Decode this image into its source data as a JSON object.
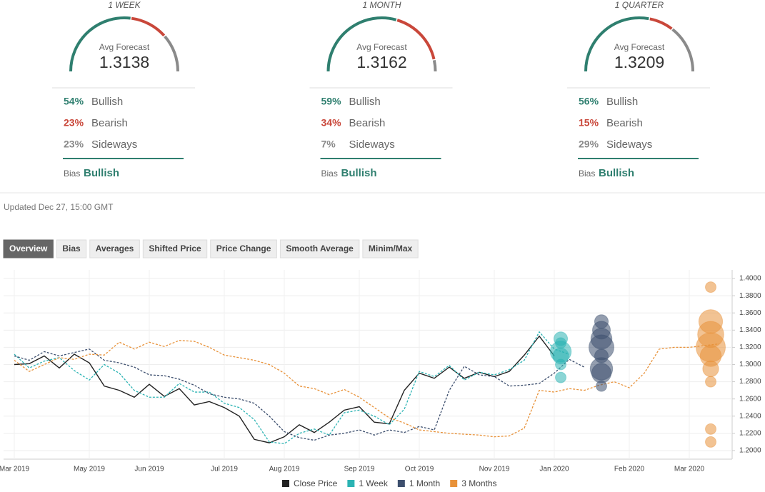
{
  "forecasts": [
    {
      "period": "1 WEEK",
      "avg_label": "Avg Forecast",
      "avg": "1.3138",
      "rows": [
        {
          "value": 54,
          "label": "54%",
          "name": "Bullish"
        },
        {
          "value": 23,
          "label": "23%",
          "name": "Bearish"
        },
        {
          "value": 23,
          "label": "23%",
          "name": "Sideways"
        }
      ],
      "bias_label": "Bias",
      "bias": "Bullish"
    },
    {
      "period": "1 MONTH",
      "avg_label": "Avg Forecast",
      "avg": "1.3162",
      "rows": [
        {
          "value": 59,
          "label": "59%",
          "name": "Bullish"
        },
        {
          "value": 34,
          "label": "34%",
          "name": "Bearish"
        },
        {
          "value": 7,
          "label": "7%",
          "name": "Sideways"
        }
      ],
      "bias_label": "Bias",
      "bias": "Bullish"
    },
    {
      "period": "1 QUARTER",
      "avg_label": "Avg Forecast",
      "avg": "1.3209",
      "rows": [
        {
          "value": 56,
          "label": "56%",
          "name": "Bullish"
        },
        {
          "value": 15,
          "label": "15%",
          "name": "Bearish"
        },
        {
          "value": 29,
          "label": "29%",
          "name": "Sideways"
        }
      ],
      "bias_label": "Bias",
      "bias": "Bullish"
    }
  ],
  "updated": "Updated Dec 27, 15:00 GMT",
  "tabs": [
    {
      "label": "Overview",
      "active": true
    },
    {
      "label": "Bias",
      "active": false
    },
    {
      "label": "Averages",
      "active": false
    },
    {
      "label": "Shifted Price",
      "active": false
    },
    {
      "label": "Price Change",
      "active": false
    },
    {
      "label": "Smooth Average",
      "active": false
    },
    {
      "label": "Minim/Max",
      "active": false
    }
  ],
  "chart_data": {
    "type": "line",
    "categories": [
      "Mar 2019",
      null,
      null,
      null,
      null,
      "May 2019",
      null,
      null,
      null,
      "Jun 2019",
      null,
      null,
      null,
      null,
      "Jul 2019",
      null,
      null,
      null,
      "Aug 2019",
      null,
      null,
      null,
      null,
      "Sep 2019",
      null,
      null,
      null,
      "Oct 2019",
      null,
      null,
      null,
      null,
      "Nov 2019",
      null,
      null,
      null,
      "Jan 2020",
      null,
      null,
      null,
      null,
      "Feb 2020",
      null,
      null,
      null,
      "Mar 2020",
      null,
      null
    ],
    "ylim": [
      1.19,
      1.41
    ],
    "yticks": [
      {
        "value": 1.2,
        "label": "1.2000"
      },
      {
        "value": 1.22,
        "label": "1.2200"
      },
      {
        "value": 1.24,
        "label": "1.2400"
      },
      {
        "value": 1.26,
        "label": "1.2600"
      },
      {
        "value": 1.28,
        "label": "1.2800"
      },
      {
        "value": 1.3,
        "label": "1.3000"
      },
      {
        "value": 1.32,
        "label": "1.3200"
      },
      {
        "value": 1.34,
        "label": "1.3400"
      },
      {
        "value": 1.36,
        "label": "1.3600"
      },
      {
        "value": 1.38,
        "label": "1.3800"
      },
      {
        "value": 1.4,
        "label": "1.4000"
      }
    ],
    "grid": true,
    "series": [
      {
        "name": "Close Price",
        "color": "#222222",
        "dashed": false,
        "values": [
          1.3,
          1.301,
          1.31,
          1.296,
          1.312,
          1.302,
          1.275,
          1.27,
          1.262,
          1.277,
          1.263,
          1.272,
          1.253,
          1.257,
          1.25,
          1.24,
          1.213,
          1.209,
          1.216,
          1.23,
          1.221,
          1.233,
          1.247,
          1.251,
          1.233,
          1.231,
          1.27,
          1.29,
          1.284,
          1.297,
          1.284,
          1.291,
          1.286,
          1.292,
          1.311,
          1.333,
          1.31,
          null,
          null,
          null,
          null,
          null,
          null,
          null,
          null,
          null,
          null,
          null
        ]
      },
      {
        "name": "1 Week",
        "color": "#2bb3b3",
        "dashed": true,
        "values": [
          1.312,
          1.296,
          1.304,
          1.308,
          1.293,
          1.282,
          1.3,
          1.29,
          1.27,
          1.262,
          1.262,
          1.278,
          1.268,
          1.268,
          1.255,
          1.25,
          1.236,
          1.21,
          1.208,
          1.22,
          1.225,
          1.218,
          1.244,
          1.247,
          1.24,
          1.23,
          1.248,
          1.292,
          1.286,
          1.299,
          1.282,
          1.291,
          1.288,
          1.294,
          1.305,
          1.338,
          1.318,
          1.312,
          null,
          null,
          null,
          null,
          null,
          null,
          null,
          null,
          null,
          null
        ],
        "bubbles": {
          "values": [
            1.33,
            1.325,
            1.315,
            1.31,
            1.3,
            1.285
          ],
          "sizes": [
            2,
            1,
            6,
            3,
            1,
            1
          ]
        }
      },
      {
        "name": "1 Month",
        "color": "#3d4f6e",
        "dashed": true,
        "values": [
          1.31,
          1.305,
          1.315,
          1.31,
          1.314,
          1.318,
          1.305,
          1.302,
          1.297,
          1.288,
          1.287,
          1.283,
          1.276,
          1.266,
          1.262,
          1.26,
          1.255,
          1.24,
          1.222,
          1.215,
          1.212,
          1.218,
          1.22,
          1.224,
          1.218,
          1.224,
          1.221,
          1.228,
          1.224,
          1.27,
          1.298,
          1.288,
          1.286,
          1.275,
          1.276,
          1.278,
          1.29,
          1.306,
          1.297,
          null,
          null,
          null,
          null,
          null,
          null,
          null,
          null,
          null
        ],
        "bubbles": {
          "values": [
            1.35,
            1.34,
            1.33,
            1.32,
            1.31,
            1.295,
            1.29,
            1.275
          ],
          "sizes": [
            2,
            4,
            6,
            9,
            2,
            7,
            5,
            1
          ]
        }
      },
      {
        "name": "3 Months",
        "color": "#e8923a",
        "dashed": true,
        "values": [
          1.305,
          1.292,
          1.3,
          1.308,
          1.306,
          1.312,
          1.311,
          1.326,
          1.318,
          1.326,
          1.321,
          1.328,
          1.327,
          1.32,
          1.311,
          1.308,
          1.305,
          1.3,
          1.29,
          1.275,
          1.272,
          1.265,
          1.271,
          1.262,
          1.25,
          1.238,
          1.232,
          1.224,
          1.222,
          1.22,
          1.219,
          1.218,
          1.216,
          1.217,
          1.226,
          1.27,
          1.268,
          1.272,
          1.27,
          1.276,
          1.28,
          1.273,
          1.29,
          1.318,
          1.32,
          1.32,
          1.322,
          1.324
        ],
        "bubbles": {
          "values": [
            1.39,
            1.35,
            1.335,
            1.32,
            1.31,
            1.295,
            1.28,
            1.225,
            1.21
          ],
          "sizes": [
            1,
            8,
            10,
            13,
            6,
            3,
            1,
            1,
            1
          ]
        }
      }
    ]
  }
}
